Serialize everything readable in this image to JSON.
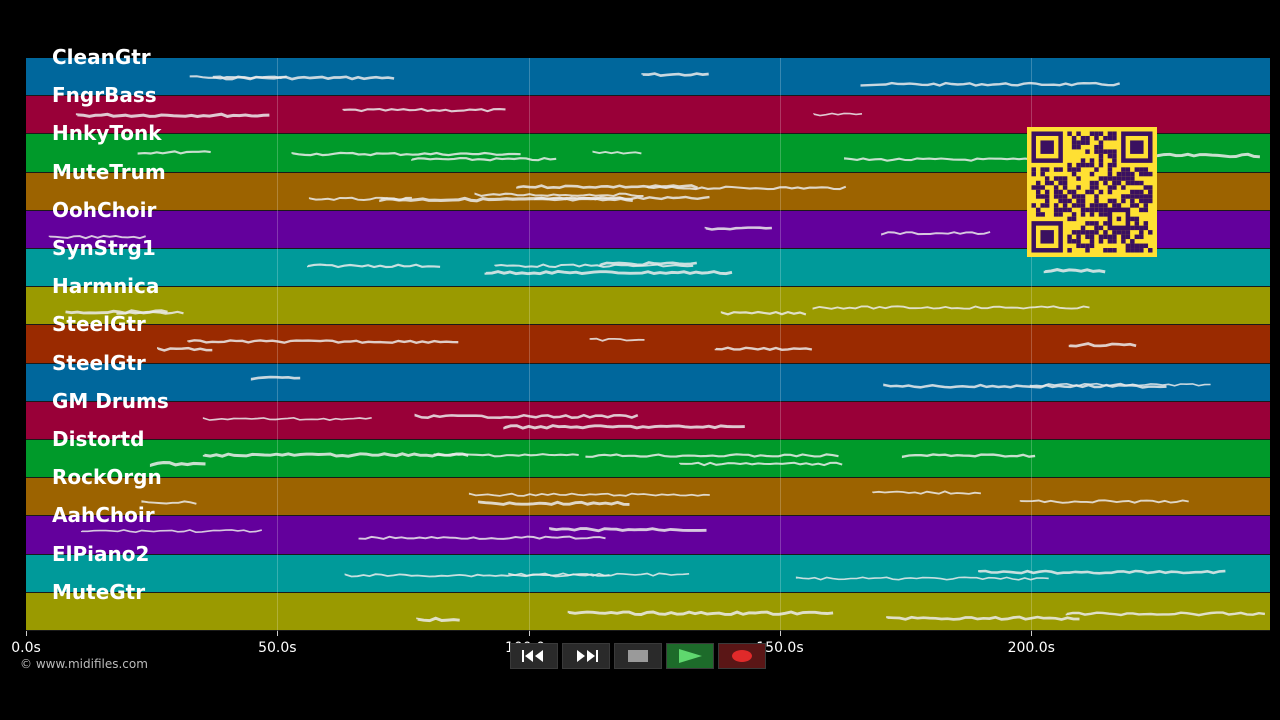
{
  "tracks": [
    {
      "name": "CleanGtr",
      "color": "#00679c"
    },
    {
      "name": "FngrBass",
      "color": "#990038"
    },
    {
      "name": "HnkyTonk",
      "color": "#009a2a"
    },
    {
      "name": "MuteTrum",
      "color": "#9c6300"
    },
    {
      "name": "OohChoir",
      "color": "#63009c"
    },
    {
      "name": "SynStrg1",
      "color": "#009a9a"
    },
    {
      "name": "Harmnica",
      "color": "#9a9a00"
    },
    {
      "name": "SteelGtr",
      "color": "#9a2a00"
    },
    {
      "name": "SteelGtr",
      "color": "#00679c"
    },
    {
      "name": "GM Drums",
      "color": "#990038"
    },
    {
      "name": "Distortd",
      "color": "#009a2a"
    },
    {
      "name": "RockOrgn",
      "color": "#9c6300"
    },
    {
      "name": "AahChoir",
      "color": "#63009c"
    },
    {
      "name": "ElPiano2",
      "color": "#009a9a"
    },
    {
      "name": "MuteGtr",
      "color": "#9a9a00"
    }
  ],
  "timeline": {
    "ticks": [
      "0.0s",
      "50.0s",
      "100.0s",
      "150.0s",
      "200.0s"
    ],
    "tick_values": [
      0,
      50,
      100,
      150,
      200
    ],
    "max_seconds": 247.5
  },
  "copyright": "© www.midifiles.com",
  "controls": [
    {
      "name": "rewind-button",
      "icon": "rewind-icon"
    },
    {
      "name": "fast-forward-button",
      "icon": "fast-forward-icon"
    },
    {
      "name": "stop-button",
      "icon": "stop-icon"
    },
    {
      "name": "play-button",
      "icon": "play-icon"
    },
    {
      "name": "record-button",
      "icon": "record-icon"
    }
  ],
  "qr_code": {
    "icon": "qr-code-icon",
    "color": "#ffe033",
    "ink": "#3a1060"
  }
}
